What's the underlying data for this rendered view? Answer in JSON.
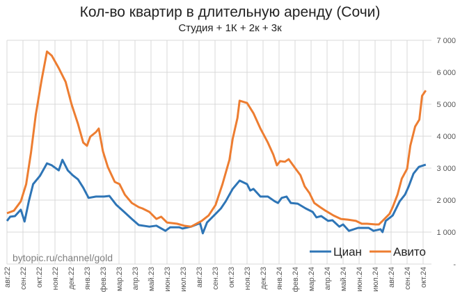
{
  "chart_data": {
    "type": "line",
    "title": "Кол-во квартир в длительную аренду (Сочи)",
    "subtitle": "Студия + 1К + 2к + 3к",
    "watermark": "bytopic.ru/channel/gold",
    "xlabel": "",
    "ylabel": "",
    "ylim": [
      0,
      7000
    ],
    "grid": true,
    "legend_position": "bottom-right",
    "y_axis_side": "right",
    "y_ticks": [
      "-",
      "1 000",
      "2 000",
      "3 000",
      "4 000",
      "5 000",
      "6 000",
      "7 000"
    ],
    "x_ticks": [
      "авг.22",
      "сен.22",
      "окт.22",
      "ноя.22",
      "дек.22",
      "янв.23",
      "фев.23",
      "мар.23",
      "апр.23",
      "май.23",
      "июн.23",
      "июл.23",
      "авг.23",
      "сен.23",
      "окт.23",
      "ноя.23",
      "дек.23",
      "янв.24",
      "фев.24",
      "мар.24",
      "апр.24",
      "май.24",
      "июн.24",
      "июл.24",
      "авг.24",
      "сен.24",
      "окт.24"
    ],
    "series": [
      {
        "name": "Циан",
        "color": "#2E75B6",
        "points": [
          [
            "2022-08-01",
            1350
          ],
          [
            "2022-08-07",
            1480
          ],
          [
            "2022-08-16",
            1500
          ],
          [
            "2022-08-27",
            1700
          ],
          [
            "2022-09-04",
            1330
          ],
          [
            "2022-09-12",
            1960
          ],
          [
            "2022-09-20",
            2500
          ],
          [
            "2022-10-03",
            2760
          ],
          [
            "2022-10-16",
            3150
          ],
          [
            "2022-10-25",
            3090
          ],
          [
            "2022-11-08",
            2930
          ],
          [
            "2022-11-15",
            3260
          ],
          [
            "2022-11-25",
            2930
          ],
          [
            "2022-12-04",
            2780
          ],
          [
            "2022-12-14",
            2650
          ],
          [
            "2022-12-24",
            2390
          ],
          [
            "2023-01-04",
            2070
          ],
          [
            "2023-01-18",
            2110
          ],
          [
            "2023-02-03",
            2110
          ],
          [
            "2023-02-13",
            2130
          ],
          [
            "2023-02-26",
            1850
          ],
          [
            "2023-03-12",
            1610
          ],
          [
            "2023-03-25",
            1410
          ],
          [
            "2023-04-08",
            1220
          ],
          [
            "2023-04-28",
            1170
          ],
          [
            "2023-05-11",
            1200
          ],
          [
            "2023-05-28",
            1040
          ],
          [
            "2023-06-07",
            1150
          ],
          [
            "2023-06-24",
            1150
          ],
          [
            "2023-06-30",
            1110
          ],
          [
            "2023-07-16",
            1170
          ],
          [
            "2023-08-03",
            1280
          ],
          [
            "2023-08-08",
            960
          ],
          [
            "2023-08-16",
            1300
          ],
          [
            "2023-09-02",
            1570
          ],
          [
            "2023-09-12",
            1740
          ],
          [
            "2023-09-21",
            1960
          ],
          [
            "2023-10-04",
            2350
          ],
          [
            "2023-10-17",
            2610
          ],
          [
            "2023-11-01",
            2500
          ],
          [
            "2023-11-07",
            2300
          ],
          [
            "2023-11-13",
            2350
          ],
          [
            "2023-11-26",
            2110
          ],
          [
            "2023-12-10",
            2110
          ],
          [
            "2023-12-23",
            1960
          ],
          [
            "2023-12-29",
            1910
          ],
          [
            "2024-01-06",
            2070
          ],
          [
            "2024-01-15",
            2110
          ],
          [
            "2024-01-23",
            1910
          ],
          [
            "2024-02-06",
            1890
          ],
          [
            "2024-02-21",
            1740
          ],
          [
            "2024-03-04",
            1630
          ],
          [
            "2024-03-11",
            1460
          ],
          [
            "2024-03-20",
            1500
          ],
          [
            "2024-04-03",
            1350
          ],
          [
            "2024-04-11",
            1370
          ],
          [
            "2024-04-24",
            1170
          ],
          [
            "2024-05-01",
            1240
          ],
          [
            "2024-05-12",
            1040
          ],
          [
            "2024-05-29",
            1130
          ],
          [
            "2024-06-19",
            1130
          ],
          [
            "2024-06-28",
            1040
          ],
          [
            "2024-07-11",
            1090
          ],
          [
            "2024-07-15",
            1000
          ],
          [
            "2024-07-21",
            1350
          ],
          [
            "2024-08-04",
            1520
          ],
          [
            "2024-08-17",
            1960
          ],
          [
            "2024-08-27",
            2170
          ],
          [
            "2024-09-04",
            2430
          ],
          [
            "2024-09-13",
            2830
          ],
          [
            "2024-09-23",
            3040
          ],
          [
            "2024-10-06",
            3110
          ]
        ]
      },
      {
        "name": "Авито",
        "color": "#ED7D31",
        "points": [
          [
            "2022-08-01",
            1590
          ],
          [
            "2022-08-14",
            1670
          ],
          [
            "2022-08-27",
            1960
          ],
          [
            "2022-09-07",
            2500
          ],
          [
            "2022-09-16",
            3480
          ],
          [
            "2022-09-25",
            4670
          ],
          [
            "2022-10-06",
            5760
          ],
          [
            "2022-10-16",
            6650
          ],
          [
            "2022-10-25",
            6520
          ],
          [
            "2022-11-08",
            6130
          ],
          [
            "2022-11-21",
            5700
          ],
          [
            "2022-12-02",
            5000
          ],
          [
            "2022-12-14",
            4390
          ],
          [
            "2022-12-24",
            3800
          ],
          [
            "2023-01-01",
            3700
          ],
          [
            "2023-01-07",
            3980
          ],
          [
            "2023-01-18",
            4130
          ],
          [
            "2023-01-23",
            4240
          ],
          [
            "2023-02-01",
            3520
          ],
          [
            "2023-02-10",
            3040
          ],
          [
            "2023-02-23",
            2570
          ],
          [
            "2023-03-02",
            2500
          ],
          [
            "2023-03-12",
            2170
          ],
          [
            "2023-03-25",
            1910
          ],
          [
            "2023-04-08",
            1780
          ],
          [
            "2023-04-15",
            1740
          ],
          [
            "2023-04-28",
            1630
          ],
          [
            "2023-05-11",
            1410
          ],
          [
            "2023-05-20",
            1480
          ],
          [
            "2023-06-01",
            1300
          ],
          [
            "2023-06-20",
            1260
          ],
          [
            "2023-07-03",
            1200
          ],
          [
            "2023-07-16",
            1170
          ],
          [
            "2023-08-06",
            1350
          ],
          [
            "2023-08-19",
            1520
          ],
          [
            "2023-09-02",
            1850
          ],
          [
            "2023-09-15",
            2500
          ],
          [
            "2023-09-28",
            3260
          ],
          [
            "2023-10-04",
            3910
          ],
          [
            "2023-10-13",
            4570
          ],
          [
            "2023-10-17",
            5110
          ],
          [
            "2023-11-01",
            5040
          ],
          [
            "2023-11-13",
            4720
          ],
          [
            "2023-11-26",
            4240
          ],
          [
            "2023-12-10",
            3800
          ],
          [
            "2023-12-20",
            3430
          ],
          [
            "2023-12-27",
            3090
          ],
          [
            "2024-01-03",
            3220
          ],
          [
            "2024-01-12",
            3200
          ],
          [
            "2024-01-19",
            3280
          ],
          [
            "2024-02-02",
            2980
          ],
          [
            "2024-02-11",
            2780
          ],
          [
            "2024-02-19",
            2430
          ],
          [
            "2024-02-28",
            2220
          ],
          [
            "2024-03-07",
            1910
          ],
          [
            "2024-03-18",
            1780
          ],
          [
            "2024-03-28",
            1670
          ],
          [
            "2024-04-13",
            1520
          ],
          [
            "2024-04-27",
            1410
          ],
          [
            "2024-05-10",
            1390
          ],
          [
            "2024-05-25",
            1350
          ],
          [
            "2024-06-06",
            1260
          ],
          [
            "2024-06-16",
            1260
          ],
          [
            "2024-07-02",
            1240
          ],
          [
            "2024-07-08",
            1240
          ],
          [
            "2024-07-15",
            1350
          ],
          [
            "2024-07-28",
            1570
          ],
          [
            "2024-08-04",
            1780
          ],
          [
            "2024-08-13",
            2170
          ],
          [
            "2024-08-21",
            2670
          ],
          [
            "2024-09-01",
            2980
          ],
          [
            "2024-09-07",
            3700
          ],
          [
            "2024-09-16",
            4300
          ],
          [
            "2024-09-24",
            4520
          ],
          [
            "2024-09-29",
            5260
          ],
          [
            "2024-10-06",
            5430
          ]
        ]
      }
    ]
  }
}
